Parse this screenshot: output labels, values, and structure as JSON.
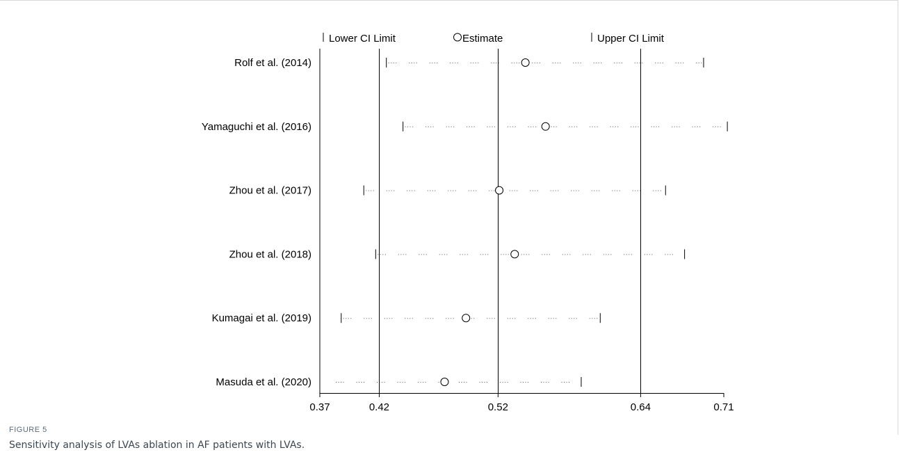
{
  "figure": {
    "label": "FIGURE 5",
    "caption": "Sensitivity analysis of LVAs ablation in AF patients with LVAs."
  },
  "chart_data": {
    "type": "sensitivity-forest",
    "legend": {
      "lower": "Lower CI Limit",
      "estimate": "Estimate",
      "upper": "Upper CI Limit"
    },
    "xlim": [
      0.37,
      0.71
    ],
    "xticks": [
      "0.37",
      "0.42",
      "0.52",
      "0.64",
      "0.71"
    ],
    "reference_lines": [
      0.42,
      0.52,
      0.64
    ],
    "studies": [
      {
        "label": "Rolf et al.  (2014)",
        "lower": 0.426,
        "estimate": 0.543,
        "upper": 0.693
      },
      {
        "label": "Yamaguchi et al.  (2016)",
        "lower": 0.44,
        "estimate": 0.56,
        "upper": 0.713
      },
      {
        "label": "Zhou et al.  (2017)",
        "lower": 0.407,
        "estimate": 0.521,
        "upper": 0.661
      },
      {
        "label": "Zhou et al.  (2018)",
        "lower": 0.417,
        "estimate": 0.534,
        "upper": 0.677
      },
      {
        "label": "Kumagai et al.  (2019)",
        "lower": 0.388,
        "estimate": 0.493,
        "upper": 0.606
      },
      {
        "label": "Masuda et al.  (2020)",
        "lower": null,
        "estimate": 0.475,
        "upper": 0.59
      }
    ]
  }
}
